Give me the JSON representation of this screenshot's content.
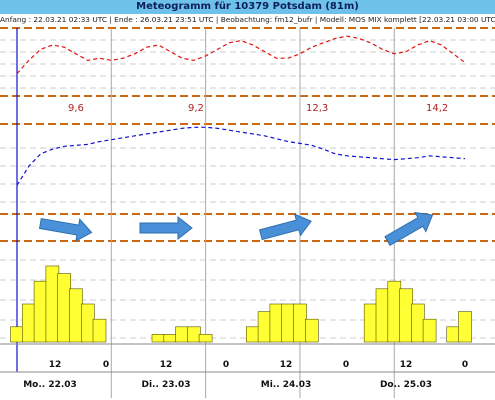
{
  "header": {
    "title": "Meteogramm für 10379 Potsdam (81m)",
    "info": "Anfang : 22.03.21 02:33 UTC | Ende : 26.03.21 23:51 UTC | Beobachtung: fm12_bufr | Modell: MOS MIX komplett [22.03.21 03:00 UTC]"
  },
  "colors": {
    "title_bg": "#6ec1e8",
    "dew_line": "#e01010",
    "temp_line": "#1010d0",
    "threshold": "#cc6611",
    "wind_arrow": "#4a90d9",
    "bar_fill": "#ffff33"
  },
  "chart_data": [
    {
      "type": "line",
      "panel": "top",
      "series": [
        {
          "x": [
            0,
            3,
            6,
            9,
            12,
            15,
            18,
            21,
            24,
            27,
            30,
            33,
            36,
            39,
            42,
            45,
            48,
            51,
            54,
            57,
            60,
            63,
            66,
            69,
            72,
            75,
            78,
            81,
            84,
            87,
            90,
            93,
            96,
            99,
            102,
            105,
            108,
            111,
            114
          ],
          "values": [
            0.2,
            0.8,
            1.3,
            1.5,
            1.4,
            1.1,
            0.8,
            0.9,
            0.8,
            0.9,
            1.1,
            1.4,
            1.5,
            1.2,
            0.9,
            0.8,
            1.0,
            1.3,
            1.6,
            1.7,
            1.5,
            1.2,
            0.9,
            0.9,
            1.1,
            1.4,
            1.6,
            1.8,
            1.9,
            1.8,
            1.6,
            1.3,
            1.1,
            1.2,
            1.5,
            1.7,
            1.5,
            1.1,
            0.7
          ]
        }
      ],
      "threshold_labels": [
        "9,6",
        "9,2",
        "12,3",
        "14,2"
      ]
    },
    {
      "type": "line",
      "panel": "middle",
      "series": [
        {
          "x": [
            0,
            3,
            6,
            9,
            12,
            15,
            18,
            21,
            24,
            27,
            30,
            33,
            36,
            39,
            42,
            45,
            48,
            51,
            54,
            57,
            60,
            63,
            66,
            69,
            72,
            75,
            78,
            81,
            84,
            87,
            90,
            93,
            96,
            99,
            102,
            105,
            108,
            111,
            114
          ],
          "values": [
            0.5,
            2.5,
            3.8,
            4.3,
            4.6,
            4.7,
            4.8,
            5.1,
            5.3,
            5.5,
            5.7,
            5.9,
            6.1,
            6.3,
            6.5,
            6.6,
            6.6,
            6.5,
            6.3,
            6.1,
            5.9,
            5.7,
            5.4,
            5.1,
            4.9,
            4.7,
            4.3,
            3.8,
            3.6,
            3.5,
            3.4,
            3.3,
            3.2,
            3.3,
            3.4,
            3.6,
            3.5,
            3.4,
            3.3
          ]
        }
      ]
    },
    {
      "type": "bar",
      "panel": "bottom",
      "x": [
        0,
        3,
        6,
        9,
        12,
        15,
        18,
        21,
        24,
        27,
        30,
        33,
        36,
        39,
        42,
        45,
        48,
        51,
        54,
        57,
        60,
        63,
        66,
        69,
        72,
        75,
        78,
        81,
        84,
        87,
        90,
        93,
        96,
        99,
        102,
        105,
        108,
        111,
        114
      ],
      "values": [
        2,
        5,
        8,
        10,
        9,
        7,
        5,
        3,
        0,
        0,
        0,
        0,
        1,
        1,
        2,
        2,
        1,
        0,
        0,
        0,
        2,
        4,
        5,
        5,
        5,
        3,
        0,
        0,
        0,
        0,
        5,
        7,
        8,
        7,
        5,
        3,
        0,
        2,
        4
      ],
      "ylim": [
        0,
        10
      ]
    }
  ],
  "wind": {
    "arrows": [
      {
        "angle": 10
      },
      {
        "angle": 0
      },
      {
        "angle": -15
      },
      {
        "angle": -30
      }
    ]
  },
  "axis": {
    "hour_labels": [
      "12",
      "0",
      "12",
      "0",
      "12",
      "0",
      "12",
      "0"
    ],
    "day_labels": [
      "Mo.. 22.03",
      "Di.. 23.03",
      "Mi.. 24.03",
      "Do.. 25.03"
    ]
  }
}
